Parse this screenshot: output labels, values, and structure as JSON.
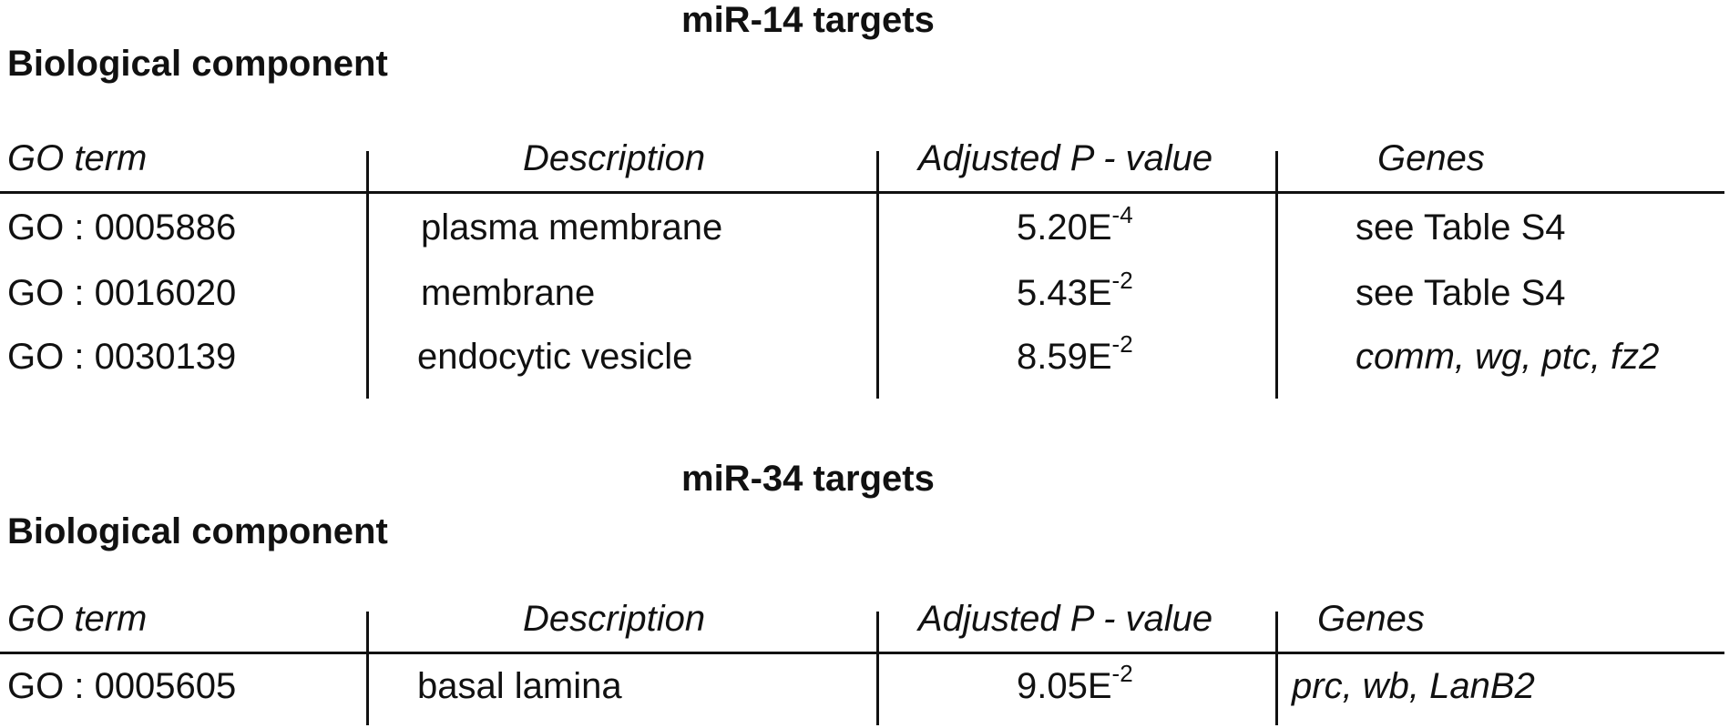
{
  "sections": [
    {
      "title": "miR-14 targets",
      "subtitle": "Biological component",
      "headers": {
        "go_term": "GO term",
        "description": "Description",
        "pvalue": "Adjusted P - value",
        "genes": "Genes"
      },
      "rows": [
        {
          "go": "GO : 0005886",
          "desc": "plasma membrane",
          "p_base": "5.20E",
          "p_exp": "-4",
          "genes": "see Table S4"
        },
        {
          "go": "GO : 0016020",
          "desc": "membrane",
          "p_base": "5.43E",
          "p_exp": "-2",
          "genes": "see Table S4"
        },
        {
          "go": "GO : 0030139",
          "desc": "endocytic vesicle",
          "p_base": "8.59E",
          "p_exp": "-2",
          "genes": "comm, wg, ptc, fz2"
        }
      ]
    },
    {
      "title": "miR-34 targets",
      "subtitle": "Biological component",
      "headers": {
        "go_term": "GO term",
        "description": "Description",
        "pvalue": "Adjusted P - value",
        "genes": "Genes"
      },
      "rows": [
        {
          "go": "GO : 0005605",
          "desc": "basal lamina",
          "p_base": "9.05E",
          "p_exp": "-2",
          "genes": "prc, wb, LanB2"
        }
      ]
    }
  ]
}
